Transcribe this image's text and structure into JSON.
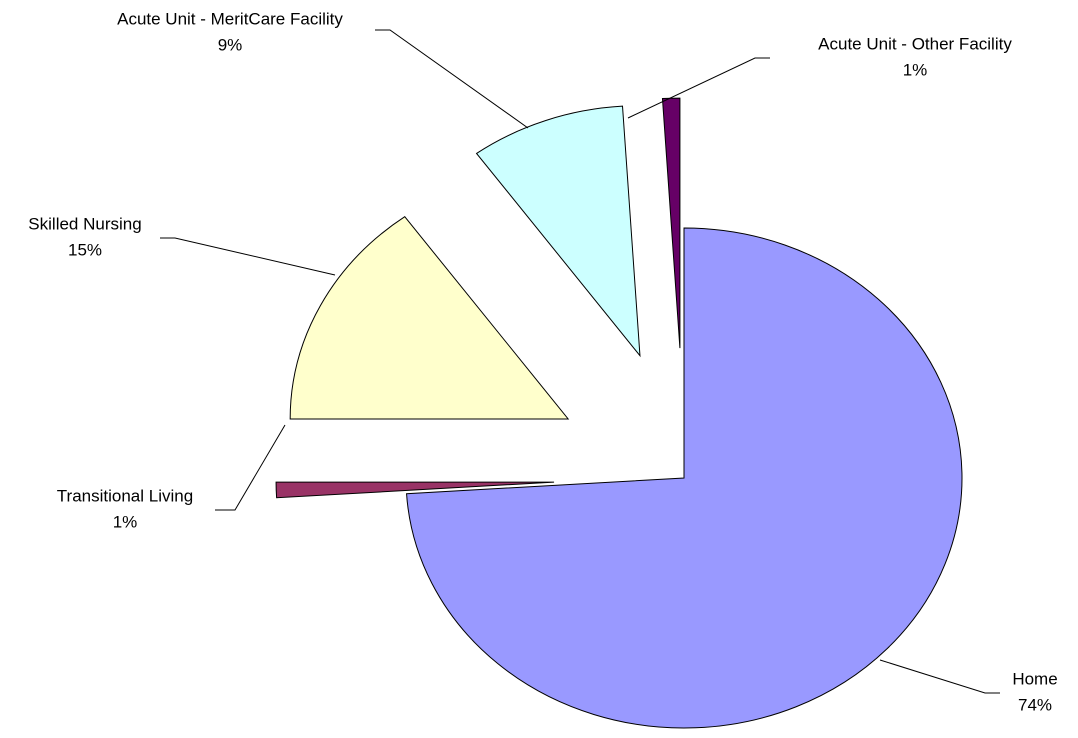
{
  "chart_data": {
    "type": "pie",
    "categories": [
      "Home",
      "Transitional Living",
      "Skilled Nursing",
      "Acute Unit - MeritCare Facility",
      "Acute Unit - Other Facility"
    ],
    "values": [
      74,
      1,
      15,
      9,
      1
    ],
    "value_labels": [
      "74%",
      "1%",
      "15%",
      "9%",
      "1%"
    ],
    "colors": [
      "#9999ff",
      "#993366",
      "#ffffcc",
      "#ccffff",
      "#660066"
    ],
    "exploded": [
      false,
      true,
      true,
      true,
      true
    ]
  }
}
